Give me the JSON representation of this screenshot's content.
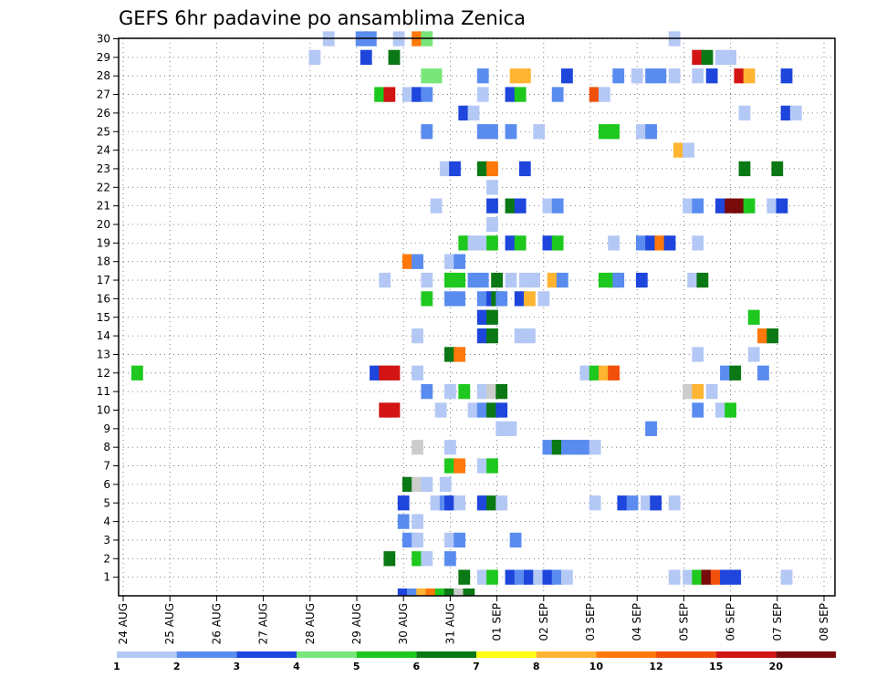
{
  "chart_data": {
    "type": "heatmap",
    "title": "GEFS 6hr padavine po ansamblima Zenica",
    "y_tick_labels": [
      "1",
      "2",
      "3",
      "4",
      "5",
      "6",
      "7",
      "8",
      "9",
      "10",
      "11",
      "12",
      "13",
      "14",
      "15",
      "16",
      "17",
      "18",
      "19",
      "20",
      "21",
      "22",
      "23",
      "24",
      "25",
      "26",
      "27",
      "28",
      "29",
      "30"
    ],
    "x_tick_labels": [
      "24 AUG",
      "25 AUG",
      "26 AUG",
      "27 AUG",
      "28 AUG",
      "29 AUG",
      "30 AUG",
      "31 AUG",
      "01 SEP",
      "02 SEP",
      "03 SEP",
      "04 SEP",
      "05 SEP",
      "06 SEP",
      "07 SEP",
      "08 SEP"
    ],
    "grid": true,
    "colorbar": {
      "labels": [
        "1",
        "2",
        "3",
        "4",
        "5",
        "6",
        "7",
        "8",
        "10",
        "12",
        "15",
        "20"
      ],
      "colors": [
        "#b4c8f5",
        "#5a8cf0",
        "#1e46dc",
        "#78e678",
        "#1ec81e",
        "#0a7814",
        "#ffff14",
        "#ffb432",
        "#ff780a",
        "#f0500a",
        "#d21414",
        "#780a0a"
      ]
    },
    "cells": [
      [
        30,
        28.4,
        1
      ],
      [
        30,
        29.1,
        2
      ],
      [
        30,
        29.3,
        2
      ],
      [
        30,
        29.9,
        1
      ],
      [
        30,
        30.3,
        9
      ],
      [
        30,
        30.5,
        4
      ],
      [
        30,
        35.8,
        1
      ],
      [
        29,
        28.1,
        1
      ],
      [
        29,
        29.2,
        3
      ],
      [
        29,
        29.8,
        6
      ],
      [
        29,
        36.3,
        11
      ],
      [
        29,
        36.5,
        6
      ],
      [
        29,
        36.8,
        1
      ],
      [
        29,
        37.0,
        1
      ],
      [
        28,
        30.5,
        4
      ],
      [
        28,
        30.7,
        4
      ],
      [
        28,
        31.7,
        2
      ],
      [
        28,
        32.4,
        8
      ],
      [
        28,
        32.6,
        8
      ],
      [
        28,
        33.5,
        3
      ],
      [
        28,
        34.6,
        2
      ],
      [
        28,
        35.0,
        1
      ],
      [
        28,
        35.3,
        2
      ],
      [
        28,
        35.5,
        2
      ],
      [
        28,
        35.8,
        1
      ],
      [
        28,
        36.3,
        1
      ],
      [
        28,
        36.6,
        3
      ],
      [
        28,
        37.2,
        11
      ],
      [
        28,
        37.4,
        8
      ],
      [
        28,
        38.2,
        3
      ],
      [
        27,
        29.5,
        5
      ],
      [
        27,
        29.7,
        11
      ],
      [
        27,
        30.1,
        1
      ],
      [
        27,
        30.3,
        3
      ],
      [
        27,
        30.5,
        2
      ],
      [
        27,
        31.7,
        1
      ],
      [
        27,
        32.3,
        3
      ],
      [
        27,
        32.5,
        5
      ],
      [
        27,
        33.3,
        2
      ],
      [
        27,
        34.1,
        10
      ],
      [
        27,
        34.3,
        1
      ],
      [
        26,
        31.3,
        3
      ],
      [
        26,
        31.5,
        1
      ],
      [
        26,
        37.3,
        1
      ],
      [
        26,
        38.2,
        3
      ],
      [
        26,
        38.4,
        1
      ],
      [
        25,
        30.5,
        2
      ],
      [
        25,
        31.7,
        2
      ],
      [
        25,
        31.9,
        2
      ],
      [
        25,
        32.3,
        2
      ],
      [
        25,
        32.9,
        1
      ],
      [
        25,
        34.3,
        5
      ],
      [
        25,
        34.5,
        5
      ],
      [
        25,
        35.1,
        1
      ],
      [
        25,
        35.3,
        2
      ],
      [
        24,
        35.9,
        8
      ],
      [
        24,
        36.1,
        1
      ],
      [
        23,
        30.9,
        1
      ],
      [
        23,
        31.1,
        3
      ],
      [
        23,
        31.7,
        6
      ],
      [
        23,
        31.9,
        9
      ],
      [
        23,
        32.6,
        3
      ],
      [
        23,
        37.3,
        6
      ],
      [
        23,
        38.0,
        6
      ],
      [
        22,
        31.9,
        1
      ],
      [
        21,
        30.7,
        1
      ],
      [
        21,
        31.9,
        3
      ],
      [
        21,
        32.3,
        6
      ],
      [
        21,
        32.5,
        3
      ],
      [
        21,
        33.1,
        1
      ],
      [
        21,
        33.3,
        2
      ],
      [
        21,
        36.1,
        1
      ],
      [
        21,
        36.3,
        2
      ],
      [
        21,
        36.8,
        3
      ],
      [
        21,
        37.0,
        12
      ],
      [
        21,
        37.2,
        12
      ],
      [
        21,
        37.4,
        5
      ],
      [
        21,
        37.9,
        1
      ],
      [
        21,
        38.1,
        3
      ],
      [
        20,
        31.9,
        1
      ],
      [
        19,
        31.3,
        5
      ],
      [
        19,
        31.5,
        1
      ],
      [
        19,
        31.7,
        1
      ],
      [
        19,
        31.9,
        5
      ],
      [
        19,
        32.3,
        3
      ],
      [
        19,
        32.5,
        5
      ],
      [
        19,
        33.1,
        3
      ],
      [
        19,
        33.3,
        5
      ],
      [
        19,
        34.5,
        1
      ],
      [
        19,
        35.1,
        2
      ],
      [
        19,
        35.3,
        3
      ],
      [
        19,
        35.5,
        9
      ],
      [
        19,
        35.7,
        3
      ],
      [
        19,
        36.3,
        1
      ],
      [
        18,
        30.1,
        9
      ],
      [
        18,
        30.3,
        2
      ],
      [
        18,
        31.0,
        1
      ],
      [
        18,
        31.2,
        2
      ],
      [
        17,
        29.6,
        1
      ],
      [
        17,
        30.5,
        1
      ],
      [
        17,
        31.0,
        5
      ],
      [
        17,
        31.2,
        5
      ],
      [
        17,
        31.5,
        2
      ],
      [
        17,
        31.7,
        2
      ],
      [
        17,
        32.0,
        6
      ],
      [
        17,
        32.3,
        1
      ],
      [
        17,
        32.6,
        1
      ],
      [
        17,
        32.8,
        1
      ],
      [
        17,
        33.2,
        8
      ],
      [
        17,
        33.4,
        2
      ],
      [
        17,
        34.3,
        5
      ],
      [
        17,
        34.5,
        5
      ],
      [
        17,
        34.6,
        2
      ],
      [
        17,
        35.1,
        3
      ],
      [
        17,
        36.2,
        1
      ],
      [
        17,
        36.4,
        6
      ],
      [
        16,
        30.5,
        5
      ],
      [
        16,
        31.0,
        2
      ],
      [
        16,
        31.2,
        2
      ],
      [
        16,
        31.7,
        2
      ],
      [
        16,
        31.9,
        3
      ],
      [
        16,
        32.0,
        6
      ],
      [
        16,
        32.1,
        2
      ],
      [
        16,
        32.5,
        3
      ],
      [
        16,
        32.7,
        8
      ],
      [
        16,
        33.0,
        1
      ],
      [
        15,
        31.7,
        3
      ],
      [
        15,
        31.9,
        6
      ],
      [
        15,
        37.5,
        5
      ],
      [
        14,
        30.3,
        1
      ],
      [
        14,
        31.7,
        3
      ],
      [
        14,
        31.9,
        6
      ],
      [
        14,
        32.5,
        1
      ],
      [
        14,
        32.7,
        1
      ],
      [
        14,
        37.7,
        9
      ],
      [
        14,
        37.9,
        6
      ],
      [
        13,
        31.0,
        6
      ],
      [
        13,
        31.2,
        9
      ],
      [
        13,
        36.3,
        1
      ],
      [
        13,
        37.5,
        1
      ],
      [
        12,
        24.3,
        5
      ],
      [
        12,
        29.4,
        3
      ],
      [
        12,
        29.6,
        11
      ],
      [
        12,
        29.8,
        11
      ],
      [
        12,
        30.3,
        1
      ],
      [
        12,
        33.9,
        1
      ],
      [
        12,
        34.1,
        5
      ],
      [
        12,
        34.3,
        8
      ],
      [
        12,
        34.5,
        10
      ],
      [
        12,
        36.9,
        2
      ],
      [
        12,
        37.1,
        6
      ],
      [
        12,
        37.7,
        2
      ],
      [
        11,
        30.5,
        2
      ],
      [
        11,
        31.0,
        1
      ],
      [
        11,
        31.3,
        5
      ],
      [
        11,
        31.7,
        1
      ],
      [
        11,
        31.9,
        14
      ],
      [
        11,
        32.1,
        6
      ],
      [
        11,
        36.1,
        13
      ],
      [
        11,
        36.3,
        8
      ],
      [
        11,
        36.6,
        1
      ],
      [
        10,
        29.6,
        11
      ],
      [
        10,
        29.8,
        11
      ],
      [
        10,
        30.8,
        1
      ],
      [
        10,
        31.5,
        1
      ],
      [
        10,
        31.7,
        2
      ],
      [
        10,
        31.9,
        6
      ],
      [
        10,
        32.1,
        3
      ],
      [
        10,
        36.3,
        2
      ],
      [
        10,
        36.8,
        1
      ],
      [
        10,
        37.0,
        5
      ],
      [
        9,
        32.1,
        1
      ],
      [
        9,
        32.3,
        1
      ],
      [
        9,
        35.3,
        2
      ],
      [
        8,
        30.3,
        14
      ],
      [
        8,
        31.0,
        1
      ],
      [
        8,
        33.1,
        2
      ],
      [
        8,
        33.3,
        6
      ],
      [
        8,
        33.5,
        2
      ],
      [
        8,
        33.7,
        2
      ],
      [
        8,
        33.9,
        2
      ],
      [
        8,
        34.1,
        1
      ],
      [
        7,
        31.0,
        5
      ],
      [
        7,
        31.2,
        9
      ],
      [
        7,
        31.7,
        1
      ],
      [
        7,
        31.9,
        5
      ],
      [
        6,
        30.1,
        6
      ],
      [
        6,
        30.3,
        13
      ],
      [
        6,
        30.5,
        1
      ],
      [
        6,
        30.9,
        1
      ],
      [
        5,
        30.0,
        3
      ],
      [
        5,
        30.7,
        1
      ],
      [
        5,
        30.9,
        2
      ],
      [
        5,
        31.0,
        3
      ],
      [
        5,
        31.2,
        1
      ],
      [
        5,
        31.7,
        3
      ],
      [
        5,
        31.9,
        6
      ],
      [
        5,
        32.1,
        1
      ],
      [
        5,
        34.1,
        1
      ],
      [
        5,
        34.7,
        3
      ],
      [
        5,
        34.9,
        2
      ],
      [
        5,
        35.2,
        1
      ],
      [
        5,
        35.4,
        3
      ],
      [
        5,
        35.8,
        1
      ],
      [
        4,
        30.0,
        2
      ],
      [
        4,
        30.3,
        1
      ],
      [
        3,
        30.1,
        2
      ],
      [
        3,
        30.3,
        1
      ],
      [
        3,
        31.0,
        1
      ],
      [
        3,
        31.2,
        2
      ],
      [
        3,
        32.4,
        2
      ],
      [
        2,
        29.7,
        6
      ],
      [
        2,
        30.3,
        5
      ],
      [
        2,
        30.5,
        1
      ],
      [
        2,
        31.0,
        2
      ],
      [
        1,
        31.3,
        6
      ],
      [
        1,
        31.7,
        1
      ],
      [
        1,
        31.9,
        5
      ],
      [
        1,
        32.3,
        3
      ],
      [
        1,
        32.5,
        2
      ],
      [
        1,
        32.7,
        3
      ],
      [
        1,
        32.9,
        1
      ],
      [
        1,
        33.1,
        3
      ],
      [
        1,
        33.3,
        2
      ],
      [
        1,
        33.5,
        1
      ],
      [
        1,
        35.8,
        1
      ],
      [
        1,
        36.1,
        1
      ],
      [
        1,
        36.3,
        5
      ],
      [
        1,
        36.5,
        12
      ],
      [
        1,
        36.7,
        10
      ],
      [
        1,
        36.9,
        3
      ],
      [
        1,
        37.1,
        3
      ],
      [
        1,
        38.2,
        1
      ],
      [
        0,
        30.0,
        3
      ],
      [
        0,
        30.2,
        2
      ],
      [
        0,
        30.4,
        8
      ],
      [
        0,
        30.6,
        9
      ],
      [
        0,
        30.8,
        5
      ],
      [
        0,
        31.0,
        6
      ],
      [
        0,
        31.2,
        14
      ],
      [
        0,
        31.4,
        6
      ]
    ]
  }
}
